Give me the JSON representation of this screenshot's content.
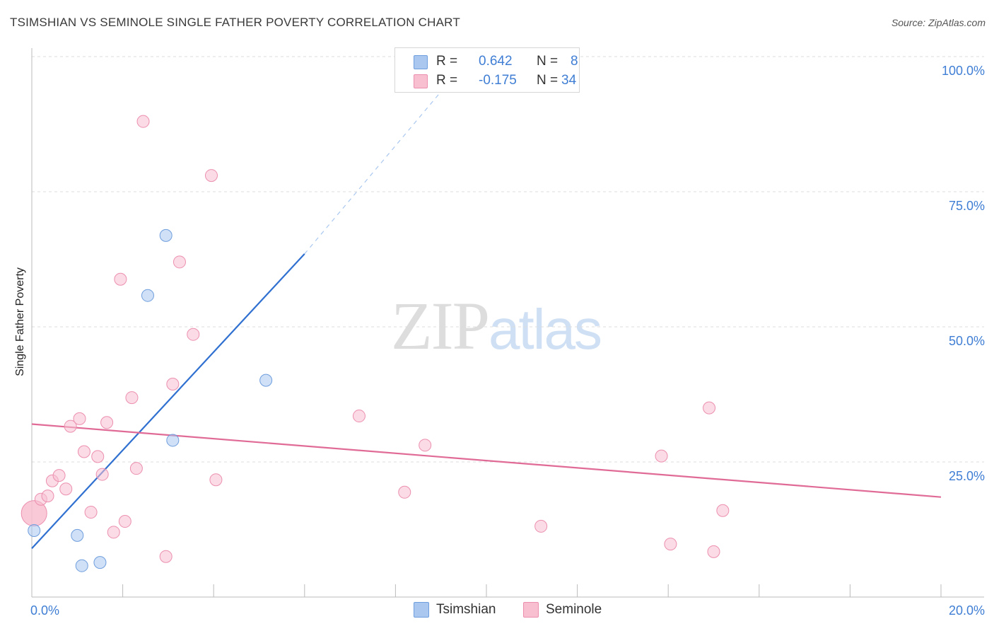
{
  "title": "TSIMSHIAN VS SEMINOLE SINGLE FATHER POVERTY CORRELATION CHART",
  "source": "Source: ZipAtlas.com",
  "watermark": {
    "part1": "ZIP",
    "part2": "atlas"
  },
  "legend_top": [
    {
      "r_label": "R =",
      "r_value": "0.642",
      "n_label": "N =",
      "n_value": "8",
      "color": "#a9c7ef",
      "border": "#6f9ede"
    },
    {
      "r_label": "R =",
      "r_value": "-0.175",
      "n_label": "N =",
      "n_value": "34",
      "color": "#f8bfd1",
      "border": "#ec8fae"
    }
  ],
  "legend_bottom": [
    {
      "label": "Tsimshian",
      "color": "#a9c7ef",
      "border": "#6f9ede"
    },
    {
      "label": "Seminole",
      "color": "#f8bfd1",
      "border": "#ec8fae"
    }
  ],
  "chart_data": {
    "type": "scatter",
    "title": "TSIMSHIAN VS SEMINOLE SINGLE FATHER POVERTY CORRELATION CHART",
    "xlabel": "",
    "ylabel": "Single Father Poverty",
    "xlim": [
      0,
      20
    ],
    "ylim": [
      0,
      100
    ],
    "x_tick_labels": [
      "0.0%",
      "20.0%"
    ],
    "y_tick_labels": [
      "25.0%",
      "50.0%",
      "75.0%",
      "100.0%"
    ],
    "y_ticks": [
      25,
      50,
      75,
      100
    ],
    "grid": true,
    "legend_position": "top-center",
    "series": [
      {
        "name": "Tsimshian",
        "color": "#a9c7ef",
        "stroke": "#6f9ede",
        "r": 0.642,
        "n": 8,
        "points": [
          [
            0.05,
            12.3
          ],
          [
            1.0,
            11.4
          ],
          [
            1.1,
            5.8
          ],
          [
            1.5,
            6.4
          ],
          [
            2.55,
            55.8
          ],
          [
            2.95,
            66.9
          ],
          [
            3.1,
            29.0
          ],
          [
            5.15,
            40.1
          ]
        ],
        "trend": {
          "x0": 0.0,
          "y0": 9.0,
          "x1": 6.0,
          "y1": 63.5,
          "dash_x1": 9.3,
          "dash_y1": 96.5,
          "color": "#2f70d0"
        }
      },
      {
        "name": "Seminole",
        "color": "#f8bfd1",
        "stroke": "#ec8fae",
        "r": -0.175,
        "n": 34,
        "points": [
          [
            0.05,
            15.5
          ],
          [
            0.2,
            18.1
          ],
          [
            0.35,
            18.7
          ],
          [
            0.45,
            21.5
          ],
          [
            0.6,
            22.5
          ],
          [
            0.75,
            20.0
          ],
          [
            0.85,
            31.6
          ],
          [
            1.05,
            33.0
          ],
          [
            1.15,
            26.9
          ],
          [
            1.45,
            26.0
          ],
          [
            1.55,
            22.7
          ],
          [
            1.65,
            32.3
          ],
          [
            1.3,
            15.7
          ],
          [
            1.8,
            12.0
          ],
          [
            2.05,
            14.0
          ],
          [
            2.2,
            36.9
          ],
          [
            2.3,
            23.8
          ],
          [
            2.45,
            88.0
          ],
          [
            1.95,
            58.8
          ],
          [
            2.95,
            7.5
          ],
          [
            3.1,
            39.4
          ],
          [
            3.25,
            62.0
          ],
          [
            3.55,
            48.6
          ],
          [
            3.95,
            78.0
          ],
          [
            4.05,
            21.7
          ],
          [
            7.2,
            33.5
          ],
          [
            8.2,
            19.4
          ],
          [
            8.65,
            28.1
          ],
          [
            11.2,
            13.1
          ],
          [
            13.85,
            26.1
          ],
          [
            14.05,
            9.8
          ],
          [
            14.9,
            35.0
          ],
          [
            15.0,
            8.4
          ],
          [
            15.2,
            16.0
          ]
        ],
        "trend": {
          "x0": 0.0,
          "y0": 32.0,
          "x1": 20.0,
          "y1": 18.5,
          "color": "#e06b96"
        }
      }
    ]
  }
}
